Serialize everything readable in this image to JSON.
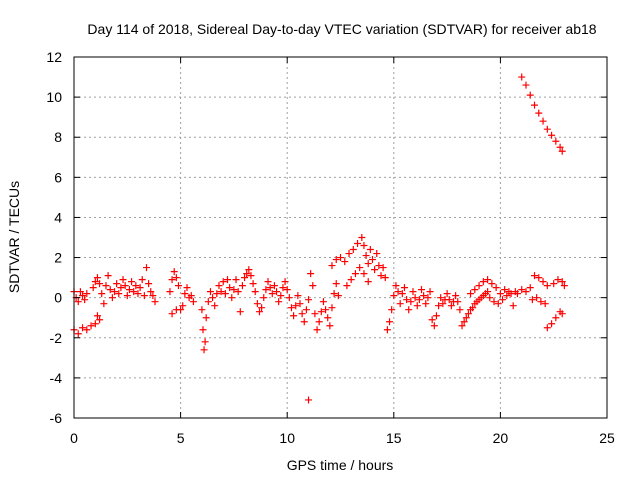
{
  "chart_data": {
    "type": "scatter",
    "title": "Day 114 of 2018, Sidereal Day-to-day VTEC variation (SDTVAR) for receiver ab18",
    "xlabel": "GPS time / hours",
    "ylabel": "SDTVAR / TECUs",
    "xlim": [
      0,
      25
    ],
    "ylim": [
      -6,
      12
    ],
    "xticks": [
      0,
      5,
      10,
      15,
      20,
      25
    ],
    "yticks": [
      -6,
      -4,
      -2,
      0,
      2,
      4,
      6,
      8,
      10,
      12
    ],
    "xtick_labels": [
      "0",
      "5",
      "10",
      "15",
      "20",
      "25"
    ],
    "ytick_labels": [
      "-6",
      "-4",
      "-2",
      "0",
      "2",
      "4",
      "6",
      "8",
      "10",
      "12"
    ],
    "grid": true,
    "marker": "+",
    "color": "#ff0000",
    "series": [
      {
        "name": "ab18",
        "points": [
          [
            0.0,
            0.3
          ],
          [
            0.1,
            0.0
          ],
          [
            0.2,
            -0.2
          ],
          [
            0.3,
            0.3
          ],
          [
            0.4,
            0.1
          ],
          [
            0.5,
            -0.1
          ],
          [
            0.6,
            0.2
          ],
          [
            0.0,
            -1.6
          ],
          [
            0.2,
            -1.8
          ],
          [
            0.4,
            -1.5
          ],
          [
            0.6,
            -1.6
          ],
          [
            0.8,
            -1.4
          ],
          [
            1.0,
            -1.3
          ],
          [
            1.1,
            -0.9
          ],
          [
            1.2,
            -1.1
          ],
          [
            0.9,
            0.5
          ],
          [
            1.0,
            0.8
          ],
          [
            1.1,
            1.0
          ],
          [
            1.2,
            0.7
          ],
          [
            1.3,
            0.2
          ],
          [
            1.4,
            -0.3
          ],
          [
            1.5,
            0.6
          ],
          [
            1.6,
            1.1
          ],
          [
            1.7,
            0.4
          ],
          [
            1.8,
            0.0
          ],
          [
            1.9,
            0.3
          ],
          [
            2.0,
            0.7
          ],
          [
            2.1,
            0.2
          ],
          [
            2.2,
            0.5
          ],
          [
            2.3,
            0.9
          ],
          [
            2.4,
            0.6
          ],
          [
            2.5,
            0.1
          ],
          [
            2.6,
            0.4
          ],
          [
            2.7,
            0.8
          ],
          [
            2.8,
            0.3
          ],
          [
            2.9,
            0.6
          ],
          [
            3.0,
            0.2
          ],
          [
            3.1,
            0.5
          ],
          [
            3.2,
            0.9
          ],
          [
            3.3,
            0.1
          ],
          [
            3.4,
            1.5
          ],
          [
            3.5,
            0.7
          ],
          [
            3.6,
            0.3
          ],
          [
            3.7,
            0.1
          ],
          [
            3.8,
            -0.2
          ],
          [
            4.5,
            0.3
          ],
          [
            4.6,
            0.9
          ],
          [
            4.7,
            1.3
          ],
          [
            4.8,
            1.0
          ],
          [
            4.9,
            0.6
          ],
          [
            5.0,
            -0.6
          ],
          [
            5.1,
            -0.4
          ],
          [
            5.2,
            0.2
          ],
          [
            4.6,
            -0.8
          ],
          [
            4.8,
            -0.6
          ],
          [
            5.3,
            0.5
          ],
          [
            5.4,
            0.0
          ],
          [
            5.5,
            0.1
          ],
          [
            5.6,
            -0.2
          ],
          [
            6.0,
            -0.6
          ],
          [
            6.05,
            -1.6
          ],
          [
            6.1,
            -2.6
          ],
          [
            6.15,
            -2.2
          ],
          [
            6.2,
            -1.0
          ],
          [
            6.3,
            -0.2
          ],
          [
            6.4,
            0.3
          ],
          [
            6.5,
            0.0
          ],
          [
            6.6,
            -0.4
          ],
          [
            6.7,
            0.2
          ],
          [
            6.8,
            0.6
          ],
          [
            6.9,
            0.3
          ],
          [
            7.0,
            0.8
          ],
          [
            7.1,
            0.2
          ],
          [
            7.2,
            0.9
          ],
          [
            7.3,
            0.5
          ],
          [
            7.4,
            0.0
          ],
          [
            7.5,
            0.4
          ],
          [
            7.6,
            0.9
          ],
          [
            7.7,
            0.3
          ],
          [
            7.8,
            -0.7
          ],
          [
            7.9,
            0.6
          ],
          [
            8.0,
            1.0
          ],
          [
            8.1,
            1.2
          ],
          [
            8.2,
            1.4
          ],
          [
            8.3,
            1.1
          ],
          [
            8.4,
            0.7
          ],
          [
            8.5,
            0.3
          ],
          [
            8.6,
            -0.3
          ],
          [
            8.7,
            -0.7
          ],
          [
            8.8,
            -0.5
          ],
          [
            8.9,
            0.0
          ],
          [
            9.0,
            0.4
          ],
          [
            9.1,
            0.8
          ],
          [
            9.2,
            0.5
          ],
          [
            9.3,
            0.2
          ],
          [
            9.4,
            0.6
          ],
          [
            9.5,
            0.3
          ],
          [
            9.6,
            -0.2
          ],
          [
            9.7,
            0.1
          ],
          [
            9.8,
            0.5
          ],
          [
            9.9,
            0.8
          ],
          [
            10.0,
            0.4
          ],
          [
            10.1,
            0.0
          ],
          [
            10.2,
            -0.5
          ],
          [
            10.3,
            -0.9
          ],
          [
            10.4,
            -0.4
          ],
          [
            10.5,
            0.1
          ],
          [
            10.6,
            -0.3
          ],
          [
            10.7,
            -0.8
          ],
          [
            10.8,
            -1.2
          ],
          [
            10.9,
            -0.6
          ],
          [
            11.0,
            -0.1
          ],
          [
            11.1,
            1.2
          ],
          [
            11.2,
            0.6
          ],
          [
            11.3,
            -0.8
          ],
          [
            11.4,
            -1.6
          ],
          [
            11.5,
            -1.2
          ],
          [
            11.6,
            -0.7
          ],
          [
            11.7,
            -0.2
          ],
          [
            11.8,
            -0.6
          ],
          [
            11.9,
            -1.0
          ],
          [
            12.0,
            -1.4
          ],
          [
            12.1,
            -0.5
          ],
          [
            12.2,
            0.2
          ],
          [
            12.3,
            0.7
          ],
          [
            12.4,
            0.1
          ],
          [
            12.1,
            1.6
          ],
          [
            12.3,
            1.9
          ],
          [
            12.5,
            2.0
          ],
          [
            12.7,
            1.8
          ],
          [
            12.9,
            2.2
          ],
          [
            13.1,
            2.4
          ],
          [
            13.3,
            2.7
          ],
          [
            13.5,
            3.0
          ],
          [
            13.6,
            2.6
          ],
          [
            13.7,
            2.1
          ],
          [
            13.8,
            1.7
          ],
          [
            13.9,
            2.4
          ],
          [
            14.0,
            1.9
          ],
          [
            14.1,
            1.4
          ],
          [
            14.2,
            2.2
          ],
          [
            14.3,
            1.6
          ],
          [
            14.4,
            1.1
          ],
          [
            14.5,
            1.5
          ],
          [
            14.6,
            1.0
          ],
          [
            12.8,
            0.6
          ],
          [
            13.0,
            0.9
          ],
          [
            13.2,
            1.2
          ],
          [
            13.4,
            1.5
          ],
          [
            13.6,
            1.2
          ],
          [
            13.8,
            0.8
          ],
          [
            14.7,
            -1.6
          ],
          [
            14.8,
            -1.2
          ],
          [
            14.9,
            -0.6
          ],
          [
            15.0,
            0.1
          ],
          [
            15.1,
            0.6
          ],
          [
            15.2,
            0.3
          ],
          [
            15.3,
            -0.3
          ],
          [
            15.4,
            0.2
          ],
          [
            15.5,
            0.5
          ],
          [
            15.6,
            -0.1
          ],
          [
            15.7,
            -0.6
          ],
          [
            15.8,
            -0.2
          ],
          [
            15.9,
            0.3
          ],
          [
            16.0,
            0.0
          ],
          [
            16.1,
            -0.4
          ],
          [
            16.2,
            -0.1
          ],
          [
            16.3,
            0.4
          ],
          [
            16.4,
            0.1
          ],
          [
            16.5,
            -0.3
          ],
          [
            16.6,
            0.0
          ],
          [
            16.7,
            0.3
          ],
          [
            16.8,
            -1.1
          ],
          [
            16.9,
            -1.4
          ],
          [
            17.0,
            -0.9
          ],
          [
            17.1,
            -0.4
          ],
          [
            17.2,
            0.0
          ],
          [
            17.3,
            -0.3
          ],
          [
            17.4,
            -0.1
          ],
          [
            17.5,
            0.2
          ],
          [
            17.6,
            -0.1
          ],
          [
            17.7,
            -0.4
          ],
          [
            17.8,
            -0.2
          ],
          [
            17.9,
            0.1
          ],
          [
            18.0,
            -0.2
          ],
          [
            18.1,
            -0.6
          ],
          [
            18.2,
            -1.4
          ],
          [
            18.3,
            -1.2
          ],
          [
            18.4,
            -1.0
          ],
          [
            18.5,
            -0.8
          ],
          [
            18.6,
            -0.6
          ],
          [
            18.7,
            -0.5
          ],
          [
            18.8,
            -0.3
          ],
          [
            18.9,
            -0.2
          ],
          [
            19.0,
            -0.1
          ],
          [
            19.1,
            0.0
          ],
          [
            19.2,
            0.1
          ],
          [
            19.3,
            0.2
          ],
          [
            19.4,
            0.3
          ],
          [
            18.6,
            0.2
          ],
          [
            18.8,
            0.4
          ],
          [
            19.0,
            0.6
          ],
          [
            19.2,
            0.8
          ],
          [
            19.4,
            0.9
          ],
          [
            19.6,
            0.7
          ],
          [
            19.8,
            0.5
          ],
          [
            19.5,
            0.0
          ],
          [
            19.7,
            -0.2
          ],
          [
            19.9,
            -0.3
          ],
          [
            20.1,
            -0.1
          ],
          [
            20.3,
            0.1
          ],
          [
            20.5,
            0.2
          ],
          [
            20.7,
            0.3
          ],
          [
            20.0,
            0.2
          ],
          [
            20.2,
            0.4
          ],
          [
            20.4,
            0.3
          ],
          [
            20.6,
            -0.4
          ],
          [
            20.8,
            0.2
          ],
          [
            21.0,
            0.4
          ],
          [
            21.2,
            0.3
          ],
          [
            21.4,
            0.5
          ],
          [
            21.6,
            1.1
          ],
          [
            21.8,
            1.0
          ],
          [
            22.0,
            0.8
          ],
          [
            22.2,
            0.6
          ],
          [
            21.5,
            -0.1
          ],
          [
            21.7,
            0.0
          ],
          [
            21.9,
            -0.2
          ],
          [
            22.1,
            -0.3
          ],
          [
            22.2,
            -1.5
          ],
          [
            22.4,
            -1.3
          ],
          [
            22.6,
            -1.0
          ],
          [
            22.8,
            -0.7
          ],
          [
            22.9,
            -0.8
          ],
          [
            22.5,
            0.7
          ],
          [
            22.7,
            0.9
          ],
          [
            22.9,
            0.8
          ],
          [
            23.0,
            0.6
          ],
          [
            11.0,
            -5.1
          ],
          [
            21.0,
            11.0
          ],
          [
            21.2,
            10.6
          ],
          [
            21.4,
            10.1
          ],
          [
            21.6,
            9.6
          ],
          [
            21.8,
            9.2
          ],
          [
            22.0,
            8.8
          ],
          [
            22.2,
            8.4
          ],
          [
            22.4,
            8.1
          ],
          [
            22.6,
            7.8
          ],
          [
            22.8,
            7.5
          ],
          [
            22.9,
            7.3
          ]
        ]
      }
    ]
  }
}
